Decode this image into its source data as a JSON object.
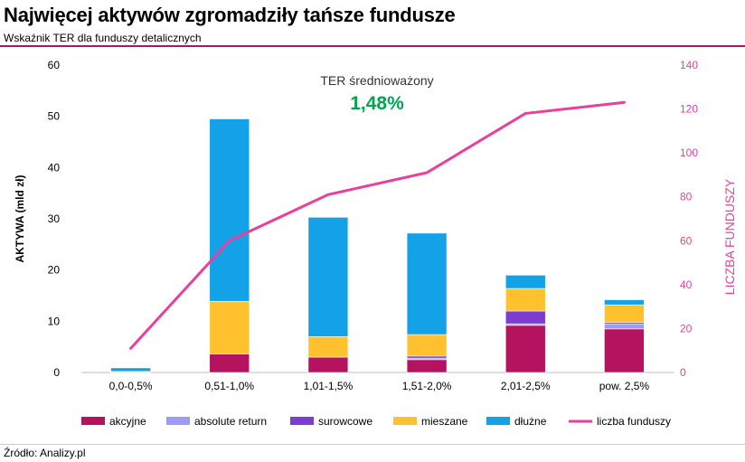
{
  "header": {
    "title": "Najwięcej aktywów zgromadziły tańsze fundusze",
    "subtitle": "Wskaźnik TER dla funduszy detalicznych"
  },
  "footer": {
    "source": "Źródło: Analizy.pl"
  },
  "annotation": {
    "label": "TER średnioważony",
    "value": "1,48%",
    "value_color": "#00a64f"
  },
  "chart_data": {
    "type": "bar",
    "stacked": true,
    "categories": [
      "0,0-0,5%",
      "0,51-1,0%",
      "1,01-1,5%",
      "1,51-2,0%",
      "2,01-2,5%",
      "pow. 2,5%"
    ],
    "ylabel": "AKTYWA (mld zł)",
    "y2label": "LICZBA FUNDUSZY",
    "ylim": [
      0,
      60
    ],
    "yticks": [
      0,
      10,
      20,
      30,
      40,
      50,
      60
    ],
    "y2lim": [
      0,
      140
    ],
    "y2ticks": [
      0,
      20,
      40,
      60,
      80,
      100,
      120,
      140
    ],
    "grid": false,
    "legend_position": "bottom",
    "series": [
      {
        "name": "akcyjne",
        "color": "#b5125f",
        "values": [
          0.1,
          3.6,
          3.0,
          2.5,
          9.2,
          8.5
        ]
      },
      {
        "name": "absolute return",
        "color": "#9d9bf5",
        "values": [
          0.0,
          0.0,
          0.0,
          0.3,
          0.3,
          1.0
        ]
      },
      {
        "name": "surowcowe",
        "color": "#7b3ccf",
        "values": [
          0.0,
          0.0,
          0.0,
          0.4,
          2.5,
          0.3
        ]
      },
      {
        "name": "mieszane",
        "color": "#ffc12e",
        "values": [
          0.1,
          10.3,
          4.0,
          4.2,
          4.4,
          3.4
        ]
      },
      {
        "name": "dłużne",
        "color": "#13a2e8",
        "values": [
          0.7,
          35.6,
          23.3,
          19.8,
          2.6,
          1.0
        ]
      }
    ],
    "line": {
      "name": "liczba funduszy",
      "color": "#e8409c",
      "axis": "right",
      "values": [
        11,
        60,
        81,
        91,
        118,
        123
      ]
    }
  }
}
